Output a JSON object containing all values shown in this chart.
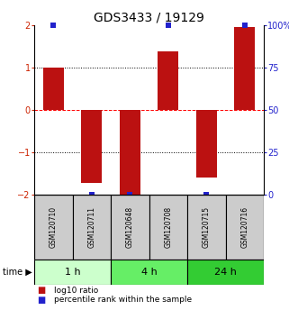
{
  "title": "GDS3433 / 19129",
  "samples": [
    "GSM120710",
    "GSM120711",
    "GSM120648",
    "GSM120708",
    "GSM120715",
    "GSM120716"
  ],
  "log10_ratios": [
    1.0,
    -1.72,
    -2.0,
    1.38,
    -1.6,
    1.95
  ],
  "percentile_ranks": [
    100,
    0,
    0,
    100,
    0,
    100
  ],
  "ylim_left": [
    -2,
    2
  ],
  "ylim_right": [
    0,
    100
  ],
  "bar_color": "#bb1111",
  "dot_color": "#2222cc",
  "dot_size": 4,
  "hline_positions": [
    1,
    0,
    -1
  ],
  "hline_styles": [
    "dotted",
    "dashed",
    "dotted"
  ],
  "hline_colors": [
    "black",
    "red",
    "black"
  ],
  "time_groups": [
    {
      "label": "1 h",
      "start": 0,
      "end": 2,
      "color": "#ccffcc"
    },
    {
      "label": "4 h",
      "start": 2,
      "end": 4,
      "color": "#66ee66"
    },
    {
      "label": "24 h",
      "start": 4,
      "end": 6,
      "color": "#33cc33"
    }
  ],
  "legend_items": [
    {
      "color": "#bb1111",
      "label": "log10 ratio"
    },
    {
      "color": "#2222cc",
      "label": "percentile rank within the sample"
    }
  ],
  "left_yticks": [
    -2,
    -1,
    0,
    1,
    2
  ],
  "right_yticks": [
    0,
    25,
    50,
    75,
    100
  ],
  "left_tick_color": "#cc2200",
  "right_tick_color": "#2222cc",
  "title_fontsize": 10,
  "bar_width": 0.55,
  "sample_box_color": "#cccccc",
  "figsize": [
    3.21,
    3.54
  ],
  "dpi": 100
}
